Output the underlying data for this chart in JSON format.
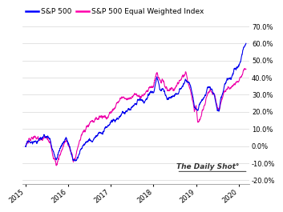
{
  "legend_labels": [
    "S&P 500",
    "S&P 500 Equal Weighted Index"
  ],
  "legend_colors": [
    "#0000ff",
    "#ff00aa"
  ],
  "watermark": "The Daily Shot°",
  "xlim": [
    2014.92,
    2020.25
  ],
  "ylim": [
    -0.22,
    0.735
  ],
  "yticks": [
    -0.2,
    -0.1,
    0.0,
    0.1,
    0.2,
    0.3,
    0.4,
    0.5,
    0.6,
    0.7
  ],
  "xticks": [
    2015,
    2016,
    2017,
    2018,
    2019,
    2020
  ],
  "background_color": "#ffffff",
  "grid_color": "#d8d8d8",
  "sp500_color": "#0000ee",
  "ew_color": "#ee00aa",
  "line_width": 0.8
}
